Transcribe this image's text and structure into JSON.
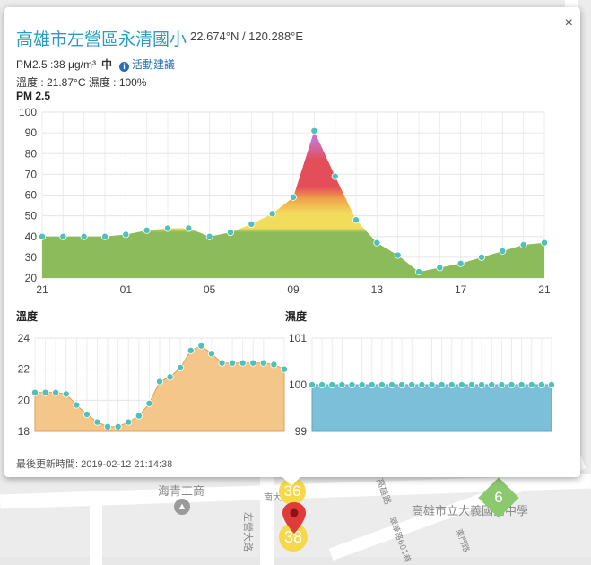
{
  "map": {
    "labels": [
      "海青工商",
      "南大路",
      "高雄市立大義國民中學",
      "高雄路",
      "左營大路",
      "翠華路601巷",
      "東門路"
    ],
    "markers": [
      {
        "value": "36",
        "color": "#f5d94a"
      },
      {
        "value": "38",
        "color": "#f5d94a"
      },
      {
        "value": "6",
        "color": "#8cc86e"
      }
    ]
  },
  "popup": {
    "title": "高雄市左營區永清國小",
    "coords": "22.674°N / 120.288°E",
    "pm_text": "PM2.5 :38 μg/m³",
    "level": "中",
    "info_icon": "i",
    "advice_link": "活動建議",
    "weather_text": "溫度 : 21.87°C 濕度 : 100%",
    "close_label": "×",
    "updated": "最後更新時間: 2019-02-12 21:14:38"
  },
  "chart_data": [
    {
      "type": "area",
      "title": "PM 2.5",
      "ylim": [
        20,
        100
      ],
      "yticks": [
        20,
        30,
        40,
        50,
        60,
        70,
        80,
        90,
        100
      ],
      "xticks": [
        "21",
        "01",
        "05",
        "09",
        "13",
        "17",
        "21"
      ],
      "grid": true,
      "values": [
        40,
        40,
        40,
        40,
        41,
        43,
        44,
        44,
        40,
        42,
        46,
        51,
        59,
        91,
        69,
        48,
        37,
        31,
        23,
        25,
        27,
        30,
        33,
        36,
        37
      ],
      "colors": {
        "green": "#8bbb5b",
        "yellow": "#f2dc5c",
        "orange": "#f0a64a",
        "red": "#e44d5a",
        "purple": "#c873c9",
        "point": "#4fc1b8"
      }
    },
    {
      "type": "area",
      "title": "溫度",
      "ylim": [
        18,
        24
      ],
      "yticks": [
        18,
        20,
        22,
        24
      ],
      "grid": true,
      "values": [
        20.5,
        20.5,
        20.5,
        20.4,
        19.7,
        19.1,
        18.6,
        18.3,
        18.3,
        18.6,
        19.0,
        19.8,
        21.2,
        21.5,
        22.1,
        23.2,
        23.5,
        23.0,
        22.4,
        22.4,
        22.4,
        22.4,
        22.4,
        22.3,
        22.0
      ],
      "colors": {
        "fill": "#f5c68a",
        "line": "#d9a25a",
        "point": "#4fc1b8"
      }
    },
    {
      "type": "area",
      "title": "濕度",
      "ylim": [
        99,
        101
      ],
      "yticks": [
        99,
        100,
        101
      ],
      "grid": true,
      "values": [
        100,
        100,
        100,
        100,
        100,
        100,
        100,
        100,
        100,
        100,
        100,
        100,
        100,
        100,
        100,
        100,
        100,
        100,
        100,
        100,
        100,
        100,
        100,
        100,
        100
      ],
      "colors": {
        "fill": "#7bbfd9",
        "line": "#5aa8c8",
        "point": "#4fc1b8"
      }
    }
  ]
}
